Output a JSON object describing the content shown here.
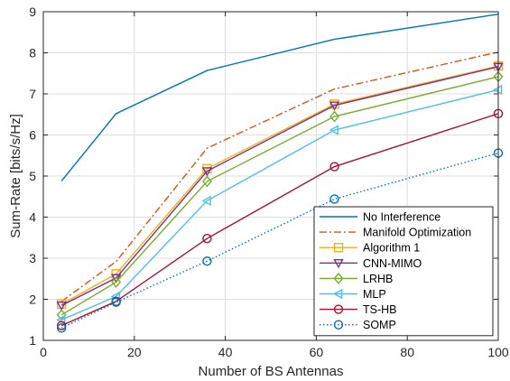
{
  "chart_data": {
    "type": "line",
    "xlabel": "Number of BS Antennas",
    "ylabel": "Sum-Rate [bits/s/Hz]",
    "xlim": [
      0,
      100
    ],
    "ylim": [
      1,
      9
    ],
    "xticks": [
      0,
      20,
      40,
      60,
      80,
      100
    ],
    "yticks": [
      1,
      2,
      3,
      4,
      5,
      6,
      7,
      8,
      9
    ],
    "grid": true,
    "legend_position": "bottom-right",
    "x": [
      4,
      16,
      36,
      64,
      100
    ],
    "series": [
      {
        "name": "No Interference",
        "values": [
          4.88,
          6.52,
          7.57,
          8.33,
          8.94
        ],
        "color": "#0072BD",
        "dash": "solid",
        "marker": "none"
      },
      {
        "name": "Manifold Optimization",
        "values": [
          1.95,
          2.92,
          5.68,
          7.12,
          8.02
        ],
        "color": "#D95319",
        "dash": "dashdot",
        "marker": "none"
      },
      {
        "name": "Algorithm 1",
        "values": [
          1.88,
          2.62,
          5.18,
          6.75,
          7.68
        ],
        "color": "#EDB120",
        "dash": "solid",
        "marker": "square"
      },
      {
        "name": "CNN-MIMO",
        "values": [
          1.85,
          2.52,
          5.12,
          6.72,
          7.66
        ],
        "color": "#7E2F8E",
        "dash": "solid",
        "marker": "triangle-down"
      },
      {
        "name": "LRHB",
        "values": [
          1.62,
          2.42,
          4.87,
          6.45,
          7.42
        ],
        "color": "#77AC30",
        "dash": "solid",
        "marker": "diamond"
      },
      {
        "name": "MLP",
        "values": [
          1.5,
          2.07,
          4.4,
          6.12,
          7.1
        ],
        "color": "#4DBEEE",
        "dash": "solid",
        "marker": "triangle-left"
      },
      {
        "name": "TS-HB",
        "values": [
          1.36,
          1.95,
          3.48,
          5.23,
          6.52
        ],
        "color": "#A2142F",
        "dash": "solid",
        "marker": "circle"
      },
      {
        "name": "SOMP",
        "values": [
          1.3,
          1.93,
          2.93,
          4.44,
          5.56
        ],
        "color": "#0072BD",
        "dash": "dotted",
        "marker": "circle"
      }
    ]
  }
}
